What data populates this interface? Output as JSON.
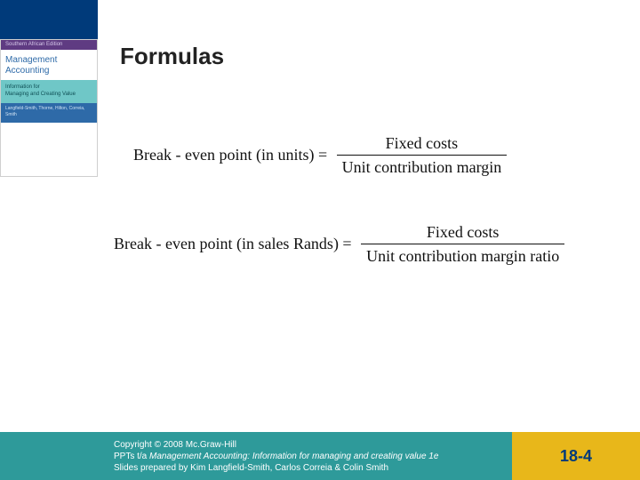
{
  "topbar": {
    "color": "#003a7a"
  },
  "book": {
    "edition": "Southern African Edition",
    "title_line1": "Management",
    "title_line2": "Accounting",
    "subtitle_line1": "Information for",
    "subtitle_line2": "Managing and Creating Value",
    "authors": "Langfield-Smith, Thorne, Hilton, Correia, Smith"
  },
  "slide": {
    "title": "Formulas"
  },
  "formulas": {
    "f1": {
      "lhs": "Break - even point (in units) = ",
      "numerator": "Fixed costs",
      "denominator": "Unit contribution margin"
    },
    "f2": {
      "lhs": "Break - even point (in sales Rands) = ",
      "numerator": "Fixed costs",
      "denominator": "Unit contribution margin ratio"
    }
  },
  "footer": {
    "line1_pre": "Copyright ",
    "line1_symbol": "©",
    "line1_post": " 2008 Mc.Graw-Hill",
    "line2_pre": "PPTs t/a ",
    "line2_italic": "Management Accounting: Information for managing and creating value 1e",
    "line3": "Slides prepared by Kim Langfield-Smith, Carlos Correia & Colin Smith",
    "slide_number": "18-4"
  }
}
